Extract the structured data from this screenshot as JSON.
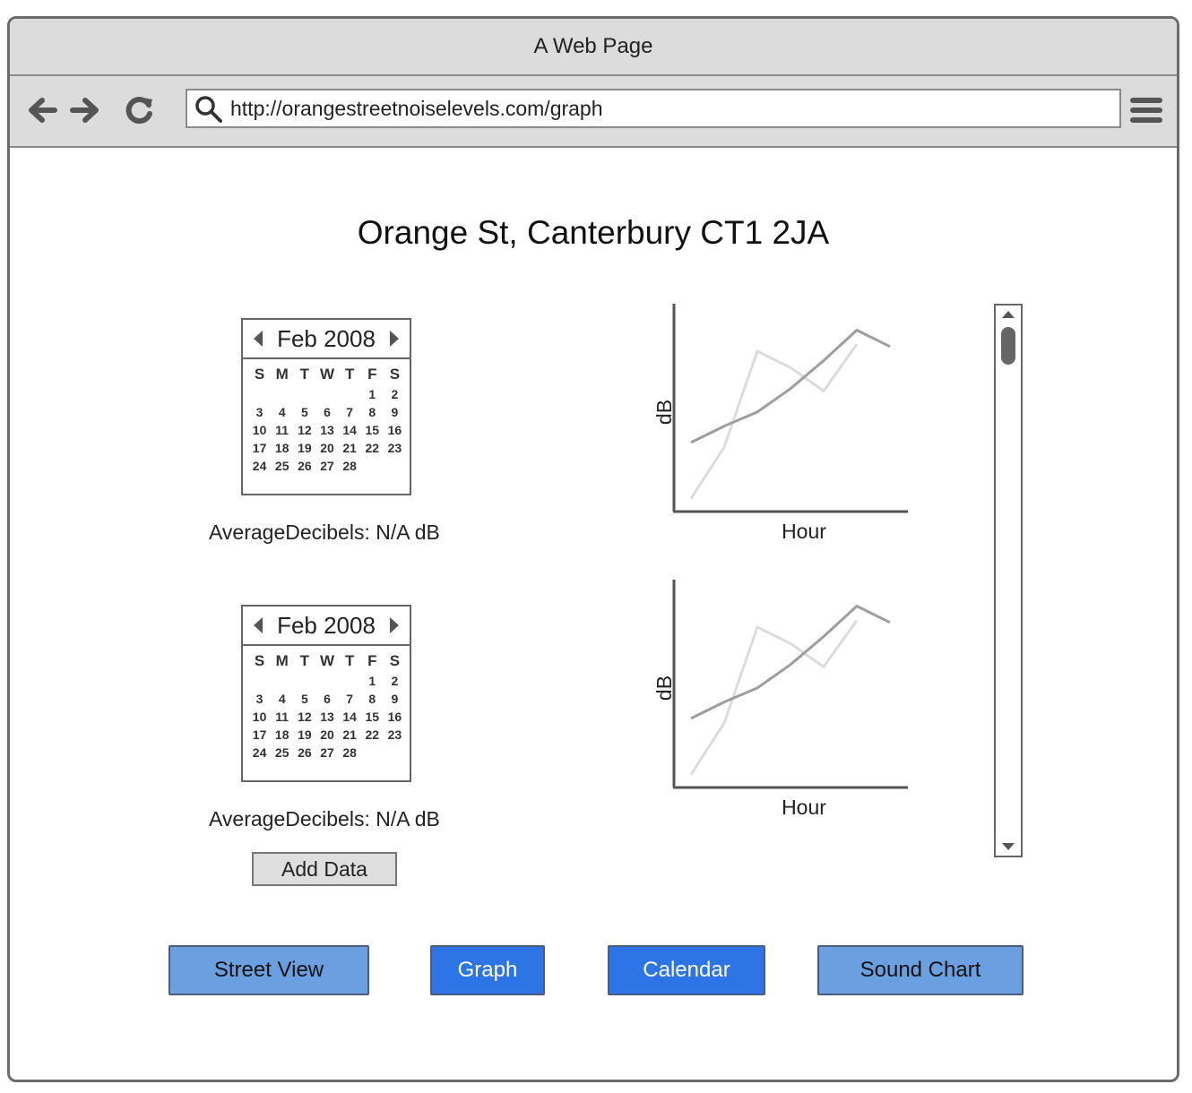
{
  "window": {
    "title": "A Web Page"
  },
  "browser": {
    "url": "http://orangestreetnoiselevels.com/graph"
  },
  "page": {
    "title": "Orange St, Canterbury CT1 2JA"
  },
  "calendars": [
    {
      "month_label": "Feb 2008",
      "weekdays": [
        "S",
        "M",
        "T",
        "W",
        "T",
        "F",
        "S"
      ],
      "first_day_offset": 5,
      "days_in_month": 28,
      "avg_label": "AverageDecibels: N/A dB"
    },
    {
      "month_label": "Feb 2008",
      "weekdays": [
        "S",
        "M",
        "T",
        "W",
        "T",
        "F",
        "S"
      ],
      "first_day_offset": 5,
      "days_in_month": 28,
      "avg_label": "AverageDecibels: N/A dB"
    }
  ],
  "add_data_label": "Add Data",
  "charts": [
    {
      "ylabel": "dB",
      "xlabel": "Hour"
    },
    {
      "ylabel": "dB",
      "xlabel": "Hour"
    }
  ],
  "chart_data": [
    {
      "type": "line",
      "title": "",
      "xlabel": "Hour",
      "ylabel": "dB",
      "x": [
        0,
        1,
        2,
        3,
        4,
        5,
        6
      ],
      "series": [
        {
          "values": [
            2.8,
            3.5,
            4.1,
            5.1,
            6.3,
            7.6,
            6.9
          ],
          "color": "#9e9e9e"
        },
        {
          "values": [
            0.4,
            2.6,
            6.7,
            6.0,
            5.0,
            7.0,
            null
          ],
          "color": "#dcdcdc"
        }
      ],
      "ylim": [
        0,
        8.5
      ],
      "grid": false
    },
    {
      "type": "line",
      "title": "",
      "xlabel": "Hour",
      "ylabel": "dB",
      "x": [
        0,
        1,
        2,
        3,
        4,
        5,
        6
      ],
      "series": [
        {
          "values": [
            2.8,
            3.5,
            4.1,
            5.1,
            6.3,
            7.6,
            6.9
          ],
          "color": "#9e9e9e"
        },
        {
          "values": [
            0.4,
            2.6,
            6.7,
            6.0,
            5.0,
            7.0,
            null
          ],
          "color": "#dcdcdc"
        }
      ],
      "ylim": [
        0,
        8.5
      ],
      "grid": false
    }
  ],
  "nav_buttons": [
    {
      "label": "Street View",
      "bg": "#6a9fe0",
      "fg": "#111111"
    },
    {
      "label": "Graph",
      "bg": "#2d74e6",
      "fg": "#ffffff"
    },
    {
      "label": "Calendar",
      "bg": "#2d74e6",
      "fg": "#ffffff"
    },
    {
      "label": "Sound Chart",
      "bg": "#6a9fe0",
      "fg": "#111111"
    }
  ]
}
